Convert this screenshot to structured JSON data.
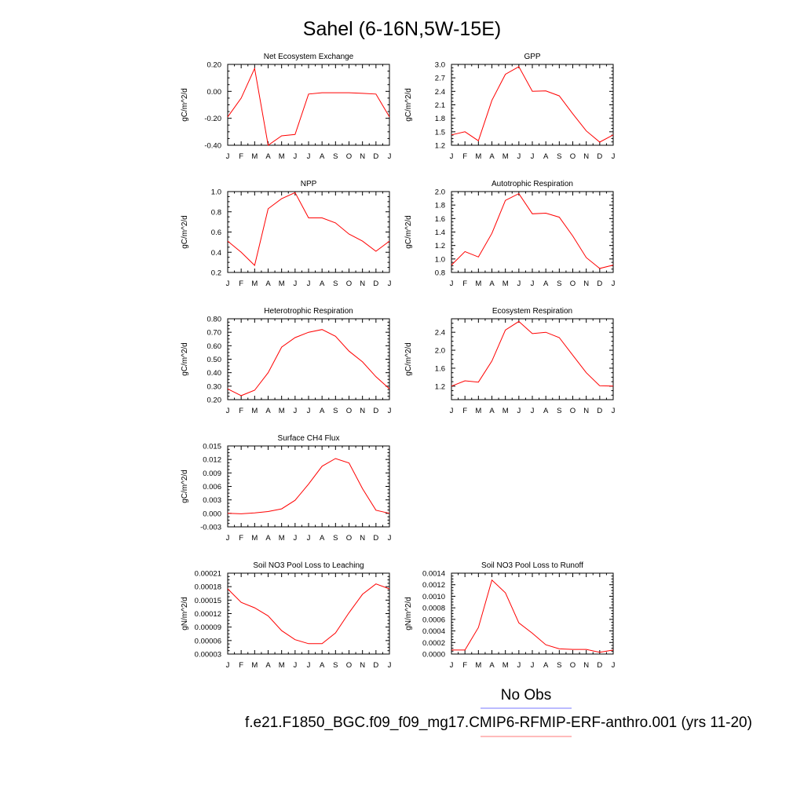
{
  "title": "Sahel (6-16N,5W-15E)",
  "legend": {
    "items": [
      {
        "label": "No Obs",
        "color": "#7777ff"
      },
      {
        "label": "f.e21.F1850_BGC.f09_f09_mg17.CMIP6-RFMIP-ERF-anthro.001 (yrs 11-20)",
        "color": "#ff7777"
      }
    ]
  },
  "colors": {
    "series": "#ff0000"
  },
  "chart_data": [
    {
      "type": "line",
      "title": "Net Ecosystem Exchange",
      "ylabel": "gC/m^2/d",
      "x": [
        "J",
        "F",
        "M",
        "A",
        "M",
        "J",
        "J",
        "A",
        "S",
        "O",
        "N",
        "D",
        "J"
      ],
      "ylim": [
        -0.4,
        0.2
      ],
      "yticks": [
        "0.20",
        "0.00",
        "-0.20",
        "-0.40"
      ],
      "series": [
        {
          "values": [
            -0.19,
            -0.05,
            0.17,
            -0.4,
            -0.33,
            -0.32,
            -0.02,
            -0.01,
            -0.01,
            -0.01,
            -0.015,
            -0.02,
            -0.19
          ]
        }
      ]
    },
    {
      "type": "line",
      "title": "GPP",
      "ylabel": "gC/m^2/d",
      "x": [
        "J",
        "F",
        "M",
        "A",
        "M",
        "J",
        "J",
        "A",
        "S",
        "O",
        "N",
        "D",
        "J"
      ],
      "ylim": [
        1.2,
        3.0
      ],
      "yticks": [
        "3.0",
        "2.7",
        "2.4",
        "2.1",
        "1.8",
        "1.5",
        "1.2"
      ],
      "series": [
        {
          "values": [
            1.43,
            1.5,
            1.3,
            2.2,
            2.78,
            2.95,
            2.4,
            2.41,
            2.3,
            1.9,
            1.52,
            1.27,
            1.43
          ]
        }
      ]
    },
    {
      "type": "line",
      "title": "NPP",
      "ylabel": "gC/m^2/d",
      "x": [
        "J",
        "F",
        "M",
        "A",
        "M",
        "J",
        "J",
        "A",
        "S",
        "O",
        "N",
        "D",
        "J"
      ],
      "ylim": [
        0.2,
        1.0
      ],
      "yticks": [
        "1.0",
        "0.8",
        "0.6",
        "0.4",
        "0.2"
      ],
      "series": [
        {
          "values": [
            0.51,
            0.4,
            0.27,
            0.83,
            0.93,
            0.99,
            0.74,
            0.74,
            0.69,
            0.58,
            0.51,
            0.41,
            0.51
          ]
        }
      ]
    },
    {
      "type": "line",
      "title": "Autotrophic Respiration",
      "ylabel": "gC/m^2/d",
      "x": [
        "J",
        "F",
        "M",
        "A",
        "M",
        "J",
        "J",
        "A",
        "S",
        "O",
        "N",
        "D",
        "J"
      ],
      "ylim": [
        0.8,
        2.0
      ],
      "yticks": [
        "2.0",
        "1.8",
        "1.6",
        "1.4",
        "1.2",
        "1.0",
        "0.8"
      ],
      "series": [
        {
          "values": [
            0.91,
            1.11,
            1.03,
            1.38,
            1.87,
            1.97,
            1.67,
            1.68,
            1.62,
            1.34,
            1.02,
            0.86,
            0.91
          ]
        }
      ]
    },
    {
      "type": "line",
      "title": "Heterotrophic Respiration",
      "ylabel": "gC/m^2/d",
      "x": [
        "J",
        "F",
        "M",
        "A",
        "M",
        "J",
        "J",
        "A",
        "S",
        "O",
        "N",
        "D",
        "J"
      ],
      "ylim": [
        0.2,
        0.8
      ],
      "yticks": [
        "0.80",
        "0.70",
        "0.60",
        "0.50",
        "0.40",
        "0.30",
        "0.20"
      ],
      "series": [
        {
          "values": [
            0.28,
            0.23,
            0.27,
            0.4,
            0.59,
            0.66,
            0.7,
            0.72,
            0.67,
            0.56,
            0.48,
            0.37,
            0.28
          ]
        }
      ]
    },
    {
      "type": "line",
      "title": "Ecosystem Respiration",
      "ylabel": "gC/m^2/d",
      "x": [
        "J",
        "F",
        "M",
        "A",
        "M",
        "J",
        "J",
        "A",
        "S",
        "O",
        "N",
        "D",
        "J"
      ],
      "ylim": [
        0.9,
        2.7
      ],
      "yticks": [
        "2.4",
        "2.0",
        "1.6",
        "1.2"
      ],
      "series": [
        {
          "values": [
            1.2,
            1.32,
            1.29,
            1.76,
            2.45,
            2.64,
            2.37,
            2.4,
            2.28,
            1.89,
            1.5,
            1.21,
            1.2
          ]
        }
      ]
    },
    {
      "type": "line",
      "title": "Surface CH4 Flux",
      "ylabel": "gC/m^2/d",
      "x": [
        "J",
        "F",
        "M",
        "A",
        "M",
        "J",
        "J",
        "A",
        "S",
        "O",
        "N",
        "D",
        "J"
      ],
      "ylim": [
        -0.003,
        0.015
      ],
      "yticks": [
        "0.015",
        "0.012",
        "0.009",
        "0.006",
        "0.003",
        "0.000",
        "-0.003"
      ],
      "series": [
        {
          "values": [
            0.0,
            -0.0001,
            0.0001,
            0.0004,
            0.001,
            0.0029,
            0.0065,
            0.0105,
            0.0122,
            0.0112,
            0.0055,
            0.0007,
            0.0
          ]
        }
      ]
    },
    {
      "type": "line",
      "title": "Soil NO3 Pool Loss to Leaching",
      "ylabel": "gN/m^2/d",
      "x": [
        "J",
        "F",
        "M",
        "A",
        "M",
        "J",
        "J",
        "A",
        "S",
        "O",
        "N",
        "D",
        "J"
      ],
      "ylim": [
        3e-05,
        0.00021
      ],
      "yticks": [
        "0.00021",
        "0.00018",
        "0.00015",
        "0.00012",
        "0.00009",
        "0.00006",
        "0.00003"
      ],
      "series": [
        {
          "values": [
            0.000175,
            0.000145,
            0.000133,
            0.000115,
            8.2e-05,
            6.2e-05,
            5.3e-05,
            5.3e-05,
            7.7e-05,
            0.000122,
            0.000163,
            0.000186,
            0.000175
          ]
        }
      ]
    },
    {
      "type": "line",
      "title": "Soil NO3 Pool Loss to Runoff",
      "ylabel": "gN/m^2/d",
      "x": [
        "J",
        "F",
        "M",
        "A",
        "M",
        "J",
        "J",
        "A",
        "S",
        "O",
        "N",
        "D",
        "J"
      ],
      "ylim": [
        0.0,
        0.0014
      ],
      "yticks": [
        "0.0014",
        "0.0012",
        "0.0010",
        "0.0008",
        "0.0006",
        "0.0004",
        "0.0002",
        "0.0000"
      ],
      "series": [
        {
          "values": [
            7e-05,
            7e-05,
            0.00046,
            0.00128,
            0.00106,
            0.00054,
            0.00036,
            0.00016,
            9e-05,
            8e-05,
            8e-05,
            3e-05,
            7e-05
          ]
        }
      ]
    }
  ]
}
